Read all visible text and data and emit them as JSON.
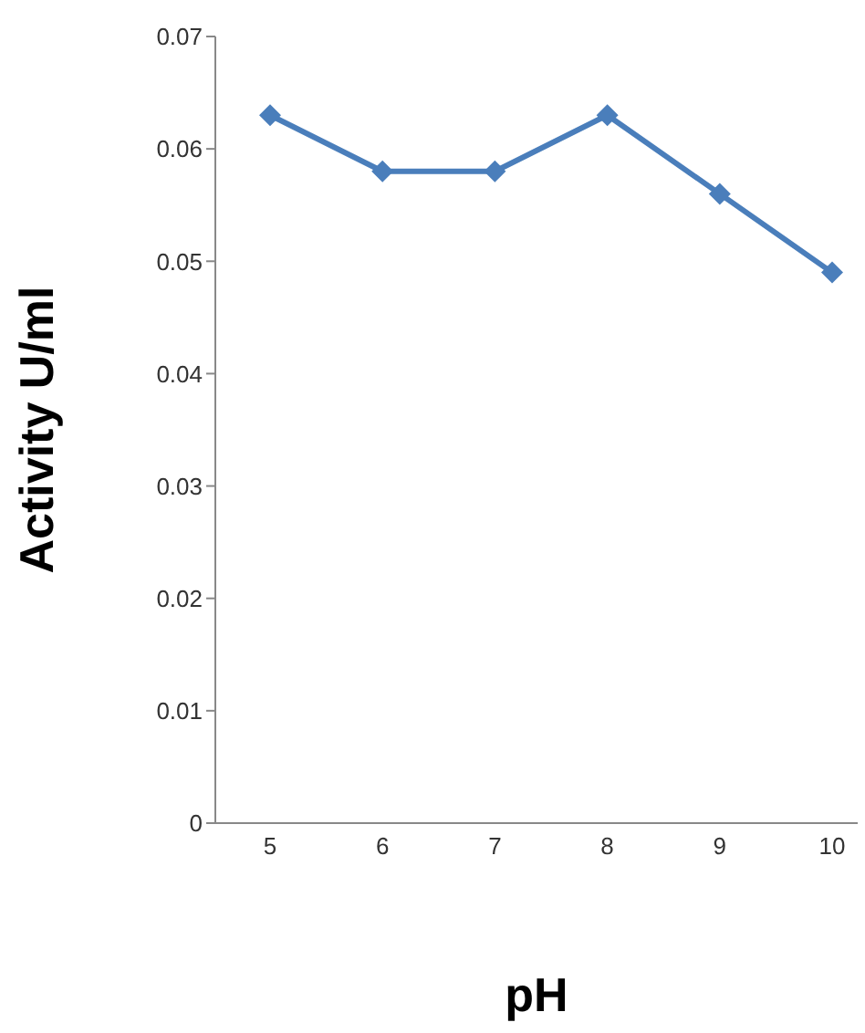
{
  "chart_data": {
    "type": "line",
    "xlabel": "pH",
    "ylabel": "Activity U/ml",
    "categories": [
      "5",
      "6",
      "7",
      "8",
      "9",
      "10"
    ],
    "series": [
      {
        "color": "#4a7ebb",
        "values": [
          0.063,
          0.058,
          0.058,
          0.063,
          0.056,
          0.049
        ]
      }
    ],
    "ylim": [
      0,
      0.07
    ],
    "yticks": [
      0,
      0.01,
      0.02,
      0.03,
      0.04,
      0.05,
      0.06,
      0.07
    ],
    "grid": false,
    "legend": false,
    "marker": "diamond",
    "line_style": "solid"
  }
}
